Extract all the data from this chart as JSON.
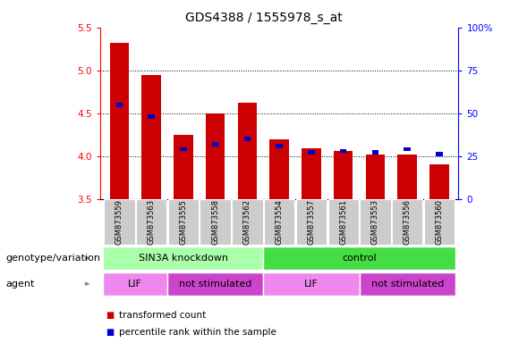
{
  "title": "GDS4388 / 1555978_s_at",
  "samples": [
    "GSM873559",
    "GSM873563",
    "GSM873555",
    "GSM873558",
    "GSM873562",
    "GSM873554",
    "GSM873557",
    "GSM873561",
    "GSM873553",
    "GSM873556",
    "GSM873560"
  ],
  "transformed_count": [
    5.32,
    4.95,
    4.25,
    4.5,
    4.62,
    4.2,
    4.09,
    4.06,
    4.02,
    4.02,
    3.9
  ],
  "percentile_rank": [
    55,
    48,
    29,
    32,
    35,
    31,
    27,
    28,
    27,
    29,
    26
  ],
  "ylim_left": [
    3.5,
    5.5
  ],
  "ylim_right": [
    0,
    100
  ],
  "yticks_left": [
    3.5,
    4.0,
    4.5,
    5.0,
    5.5
  ],
  "yticks_right": [
    0,
    25,
    50,
    75,
    100
  ],
  "ytick_labels_right": [
    "0",
    "25",
    "50",
    "75",
    "100%"
  ],
  "bar_color": "#cc0000",
  "percentile_color": "#0000cc",
  "genotype_groups": [
    {
      "label": "SIN3A knockdown",
      "start": 0,
      "end": 5,
      "color": "#aaffaa"
    },
    {
      "label": "control",
      "start": 5,
      "end": 11,
      "color": "#44dd44"
    }
  ],
  "agent_groups": [
    {
      "label": "LIF",
      "start": 0,
      "end": 2,
      "color": "#ee88ee"
    },
    {
      "label": "not stimulated",
      "start": 2,
      "end": 5,
      "color": "#cc44cc"
    },
    {
      "label": "LIF",
      "start": 5,
      "end": 8,
      "color": "#ee88ee"
    },
    {
      "label": "not stimulated",
      "start": 8,
      "end": 11,
      "color": "#cc44cc"
    }
  ],
  "legend_items": [
    {
      "label": "transformed count",
      "color": "#cc0000"
    },
    {
      "label": "percentile rank within the sample",
      "color": "#0000cc"
    }
  ],
  "label_genotype": "genotype/variation",
  "label_agent": "agent",
  "title_fontsize": 10,
  "tick_fontsize": 7.5,
  "sample_fontsize": 6,
  "row_label_fontsize": 8,
  "legend_fontsize": 7.5,
  "row_group_fontsize": 8
}
